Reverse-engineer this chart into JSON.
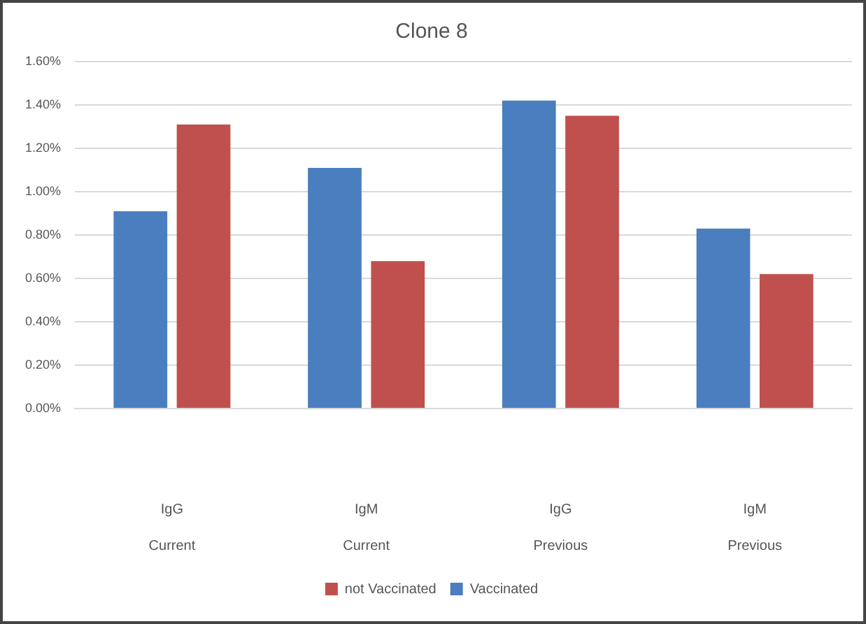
{
  "chart_data": {
    "type": "bar",
    "title": "Clone 8",
    "categories": [
      "IgG\nCurrent",
      "IgM\nCurrent",
      "IgG\nPrevious",
      "IgM\nPrevious"
    ],
    "series": [
      {
        "name": "Vaccinated",
        "color": "#4a7ebf",
        "values": [
          0.91,
          1.11,
          1.42,
          0.83
        ]
      },
      {
        "name": "not Vaccinated",
        "color": "#c0504d",
        "values": [
          1.31,
          0.68,
          1.35,
          0.62
        ]
      }
    ],
    "ylim": [
      0,
      1.6
    ],
    "yticks": [
      {
        "value": 0,
        "label": "0.00%"
      },
      {
        "value": 0.2,
        "label": "0.20%"
      },
      {
        "value": 0.4,
        "label": "0.40%"
      },
      {
        "value": 0.6,
        "label": "0.60%"
      },
      {
        "value": 0.8,
        "label": "0.80%"
      },
      {
        "value": 1,
        "label": "1.00%"
      },
      {
        "value": 1.2,
        "label": "1.20%"
      },
      {
        "value": 1.4,
        "label": "1.40%"
      },
      {
        "value": 1.6,
        "label": "1.60%"
      }
    ],
    "grid": "y",
    "legend": "bottom"
  }
}
